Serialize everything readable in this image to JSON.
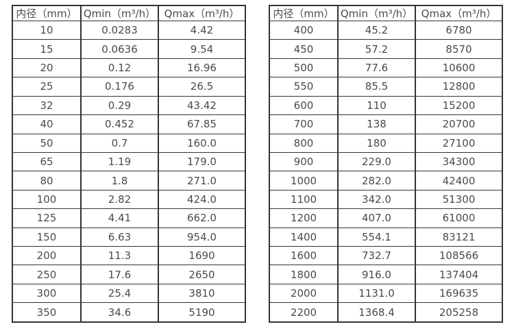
{
  "style": {
    "background_color": "#ffffff",
    "border_color": "#333333",
    "text_color": "#4a4a4a"
  },
  "tables": [
    {
      "name": "small-diameter-flow-table",
      "headers": [
        "内径（mm）",
        "Qmin（m³/h）",
        "Qmax（m³/h）"
      ],
      "rows": [
        [
          "10",
          "0.0283",
          "4.42"
        ],
        [
          "15",
          "0.0636",
          "9.54"
        ],
        [
          "20",
          "0.12",
          "16.96"
        ],
        [
          "25",
          "0.176",
          "26.5"
        ],
        [
          "32",
          "0.29",
          "43.42"
        ],
        [
          "40",
          "0.452",
          "67.85"
        ],
        [
          "50",
          "0.7",
          "160.0"
        ],
        [
          "65",
          "1.19",
          "179.0"
        ],
        [
          "80",
          "1.8",
          "271.0"
        ],
        [
          "100",
          "2.82",
          "424.0"
        ],
        [
          "125",
          "4.41",
          "662.0"
        ],
        [
          "150",
          "6.63",
          "954.0"
        ],
        [
          "200",
          "11.3",
          "1690"
        ],
        [
          "250",
          "17.6",
          "2650"
        ],
        [
          "300",
          "25.4",
          "3810"
        ],
        [
          "350",
          "34.6",
          "5190"
        ]
      ]
    },
    {
      "name": "large-diameter-flow-table",
      "headers": [
        "内径（mm）",
        "Qmin（m³/h）",
        "Qmax（m³/h）"
      ],
      "rows": [
        [
          "400",
          "45.2",
          "6780"
        ],
        [
          "450",
          "57.2",
          "8570"
        ],
        [
          "500",
          "77.6",
          "10600"
        ],
        [
          "550",
          "85.5",
          "12800"
        ],
        [
          "600",
          "110",
          "15200"
        ],
        [
          "700",
          "138",
          "20700"
        ],
        [
          "800",
          "180",
          "27100"
        ],
        [
          "900",
          "229.0",
          "34300"
        ],
        [
          "1000",
          "282.0",
          "42400"
        ],
        [
          "1100",
          "342.0",
          "51300"
        ],
        [
          "1200",
          "407.0",
          "61000"
        ],
        [
          "1400",
          "554.1",
          "83121"
        ],
        [
          "1600",
          "732.7",
          "108566"
        ],
        [
          "1800",
          "916.0",
          "137404"
        ],
        [
          "2000",
          "1131.0",
          "169635"
        ],
        [
          "2200",
          "1368.4",
          "205258"
        ]
      ]
    }
  ]
}
